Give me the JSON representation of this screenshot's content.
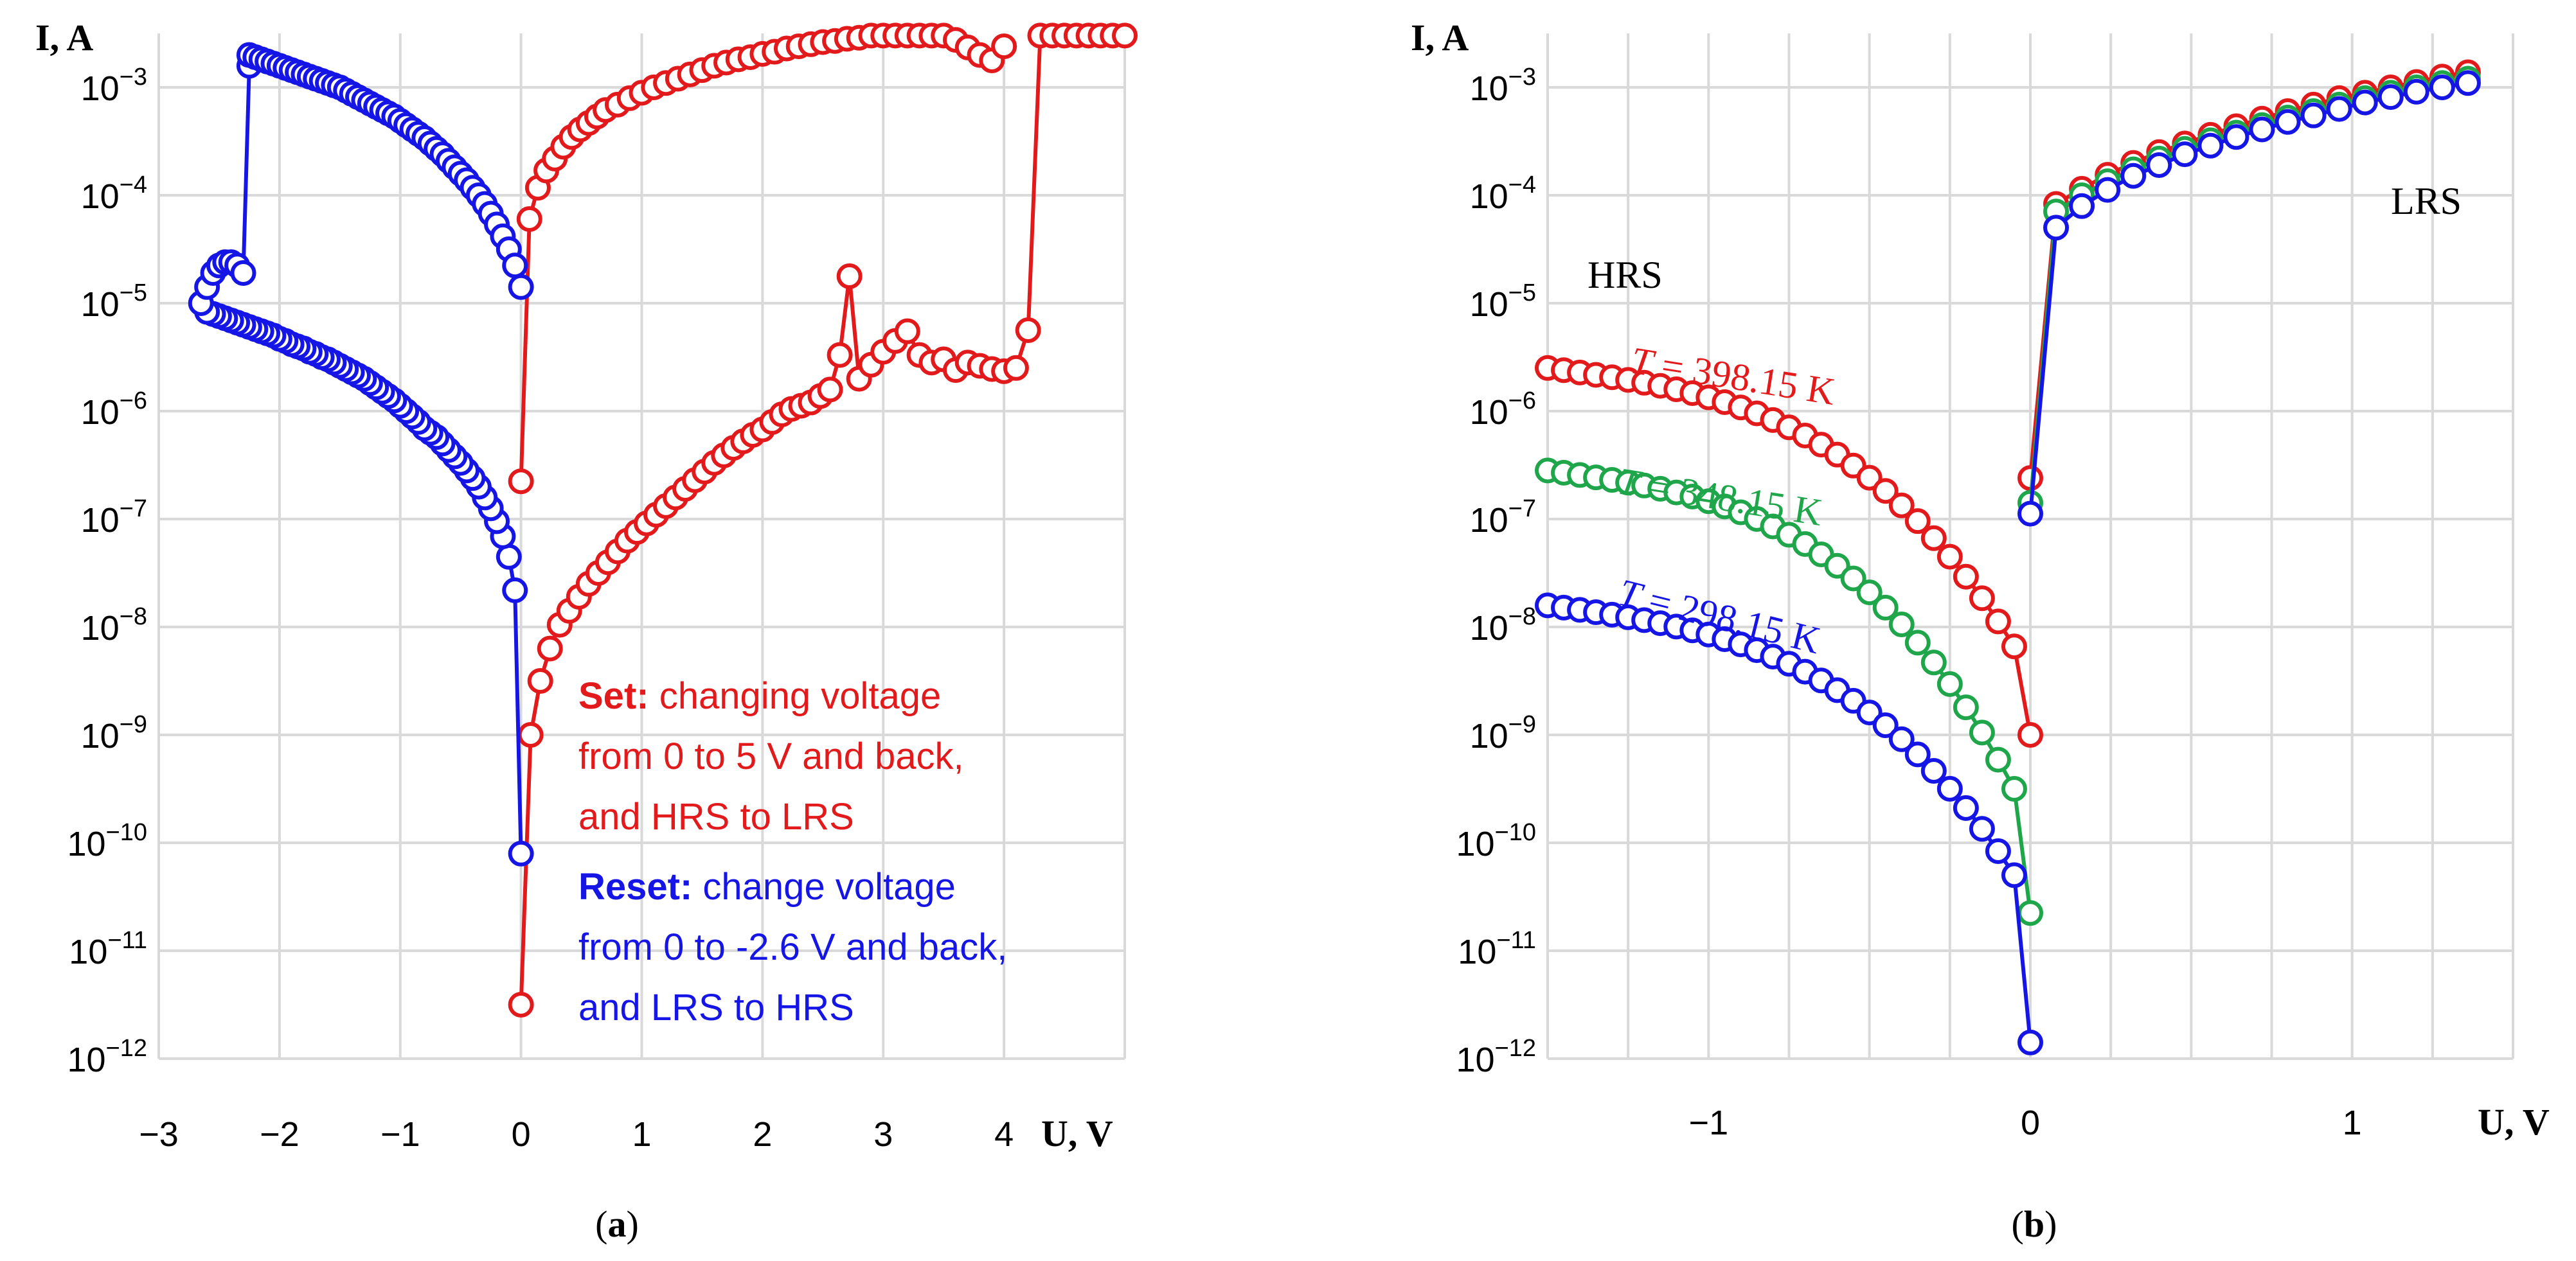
{
  "chart_data": [
    {
      "type": "scatter",
      "panel": "a",
      "caption_open": "(",
      "caption_letter": "a",
      "caption_close": ")",
      "xlabel": "U, V",
      "ylabel": "I, A",
      "xlim": [
        -3,
        5
      ],
      "ylim_exp": [
        -12,
        -2.5
      ],
      "xticks": [
        -3,
        -2,
        -1,
        0,
        1,
        2,
        3,
        4
      ],
      "xtick_labels": [
        "−3",
        "−2",
        "−1",
        "0",
        "1",
        "2",
        "3",
        "4"
      ],
      "ytick_exps": [
        -12,
        -11,
        -10,
        -9,
        -8,
        -7,
        -6,
        -5,
        -4,
        -3
      ],
      "ytick_base": "10",
      "ytick_sup": [
        "−12",
        "−11",
        "−10",
        "−9",
        "−8",
        "−7",
        "−6",
        "−5",
        "−4",
        "−3"
      ],
      "annotation": {
        "set_bold": "Set:",
        "set_line1": " changing voltage",
        "set_line2": "from 0 to 5 V and back,",
        "set_line3": "and HRS to LRS",
        "reset_bold": "Reset:",
        "reset_line1": " change voltage",
        "reset_line2": "from 0 to -2.6 V and back,",
        "reset_line3": "and LRS to HRS"
      },
      "series": [
        {
          "name": "Set",
          "color": "#e31a1c",
          "segments": [
            {
              "x": [
                0.0,
                0.07,
                0.14,
                0.21,
                0.28,
                0.35,
                0.42,
                0.49,
                0.56,
                0.63,
                0.7,
                0.8,
                0.9,
                1.0,
                1.1,
                1.2,
                1.3,
                1.4,
                1.5,
                1.6,
                1.7,
                1.8,
                1.9,
                2.0,
                2.1,
                2.2,
                2.3,
                2.4,
                2.5,
                2.6,
                2.7,
                2.8,
                2.9,
                3.0,
                3.1,
                3.2,
                3.3,
                3.4,
                3.5,
                3.6,
                3.7,
                3.8,
                3.9,
                4.0
              ],
              "logy": [
                -6.65,
                -4.22,
                -3.93,
                -3.77,
                -3.66,
                -3.55,
                -3.46,
                -3.39,
                -3.33,
                -3.27,
                -3.21,
                -3.16,
                -3.1,
                -3.05,
                -3.0,
                -2.96,
                -2.92,
                -2.88,
                -2.84,
                -2.8,
                -2.77,
                -2.74,
                -2.72,
                -2.69,
                -2.67,
                -2.64,
                -2.62,
                -2.6,
                -2.58,
                -2.57,
                -2.55,
                -2.54,
                -2.52,
                -2.52,
                -2.52,
                -2.52,
                -2.52,
                -2.52,
                -2.52,
                -2.56,
                -2.63,
                -2.7,
                -2.75,
                -2.62
              ]
            },
            {
              "x": [
                0.0,
                0.08,
                0.16,
                0.24,
                0.32,
                0.4,
                0.48,
                0.56,
                0.64,
                0.72,
                0.8,
                0.88,
                0.96,
                1.04,
                1.12,
                1.2,
                1.28,
                1.36,
                1.44,
                1.52,
                1.6,
                1.68,
                1.76,
                1.84,
                1.92,
                2.0,
                2.08,
                2.16,
                2.24,
                2.32,
                2.4,
                2.48,
                2.56,
                2.64,
                2.72,
                2.8,
                2.9,
                3.0,
                3.1,
                3.2,
                3.3,
                3.4,
                3.5,
                3.6,
                3.7,
                3.8,
                3.9,
                4.0,
                4.1,
                4.2,
                4.3,
                4.4,
                4.5,
                4.6,
                4.7,
                4.8,
                4.9,
                5.0
              ],
              "logy": [
                -11.5,
                -9.0,
                -8.5,
                -8.2,
                -7.98,
                -7.85,
                -7.72,
                -7.6,
                -7.5,
                -7.4,
                -7.3,
                -7.2,
                -7.12,
                -7.04,
                -6.96,
                -6.88,
                -6.8,
                -6.72,
                -6.64,
                -6.56,
                -6.48,
                -6.41,
                -6.34,
                -6.28,
                -6.22,
                -6.17,
                -6.1,
                -6.03,
                -5.98,
                -5.95,
                -5.92,
                -5.86,
                -5.8,
                -5.48,
                -4.75,
                -5.7,
                -5.57,
                -5.45,
                -5.35,
                -5.26,
                -5.48,
                -5.55,
                -5.52,
                -5.62,
                -5.55,
                -5.58,
                -5.61,
                -5.63,
                -5.6,
                -5.25,
                -2.52,
                -2.52,
                -2.52,
                -2.52,
                -2.52,
                -2.52,
                -2.52,
                -2.52
              ]
            }
          ]
        },
        {
          "name": "Reset",
          "color": "#1515e6",
          "segments": [
            {
              "x": [
                0.0,
                -0.05,
                -0.1,
                -0.15,
                -0.2,
                -0.25,
                -0.3,
                -0.35,
                -0.4,
                -0.45,
                -0.5,
                -0.55,
                -0.6,
                -0.65,
                -0.7,
                -0.75,
                -0.8,
                -0.85,
                -0.9,
                -0.95,
                -1.0,
                -1.05,
                -1.1,
                -1.15,
                -1.2,
                -1.25,
                -1.3,
                -1.35,
                -1.4,
                -1.45,
                -1.5,
                -1.55,
                -1.6,
                -1.65,
                -1.7,
                -1.75,
                -1.8,
                -1.85,
                -1.9,
                -1.95,
                -2.0,
                -2.05,
                -2.1,
                -2.15,
                -2.2,
                -2.25,
                -2.3,
                -2.35,
                -2.4,
                -2.45,
                -2.5,
                -2.55,
                -2.6,
                -2.65,
                -2.6,
                -2.55,
                -2.5,
                -2.45,
                -2.4,
                -2.35,
                -2.3,
                -2.25,
                -2.25
              ],
              "logy": [
                -10.1,
                -7.66,
                -7.35,
                -7.16,
                -7.02,
                -6.9,
                -6.8,
                -6.7,
                -6.62,
                -6.55,
                -6.48,
                -6.42,
                -6.36,
                -6.3,
                -6.24,
                -6.2,
                -6.16,
                -6.1,
                -6.05,
                -6.0,
                -5.95,
                -5.9,
                -5.86,
                -5.82,
                -5.78,
                -5.74,
                -5.7,
                -5.67,
                -5.64,
                -5.61,
                -5.58,
                -5.55,
                -5.52,
                -5.5,
                -5.47,
                -5.45,
                -5.42,
                -5.4,
                -5.38,
                -5.35,
                -5.33,
                -5.3,
                -5.28,
                -5.26,
                -5.24,
                -5.22,
                -5.2,
                -5.18,
                -5.16,
                -5.14,
                -5.12,
                -5.1,
                -5.08,
                -5.0,
                -4.85,
                -4.72,
                -4.65,
                -4.62,
                -4.62,
                -4.65,
                -4.72,
                -2.8,
                -2.7
              ]
            },
            {
              "x": [
                -2.2,
                -2.15,
                -2.1,
                -2.05,
                -2.0,
                -1.95,
                -1.9,
                -1.85,
                -1.8,
                -1.75,
                -1.7,
                -1.65,
                -1.6,
                -1.55,
                -1.5,
                -1.45,
                -1.4,
                -1.35,
                -1.3,
                -1.25,
                -1.2,
                -1.15,
                -1.1,
                -1.05,
                -1.0,
                -0.95,
                -0.9,
                -0.85,
                -0.8,
                -0.75,
                -0.7,
                -0.65,
                -0.6,
                -0.55,
                -0.5,
                -0.45,
                -0.4,
                -0.35,
                -0.3,
                -0.25,
                -0.2,
                -0.15,
                -0.1,
                -0.05,
                0.0
              ],
              "logy": [
                -2.72,
                -2.74,
                -2.76,
                -2.78,
                -2.8,
                -2.82,
                -2.84,
                -2.86,
                -2.88,
                -2.9,
                -2.92,
                -2.94,
                -2.96,
                -2.98,
                -3.0,
                -3.03,
                -3.06,
                -3.09,
                -3.12,
                -3.15,
                -3.18,
                -3.21,
                -3.24,
                -3.27,
                -3.31,
                -3.35,
                -3.39,
                -3.43,
                -3.47,
                -3.52,
                -3.57,
                -3.62,
                -3.68,
                -3.74,
                -3.8,
                -3.86,
                -3.93,
                -4.0,
                -4.08,
                -4.17,
                -4.27,
                -4.38,
                -4.5,
                -4.65,
                -4.85
              ]
            }
          ]
        }
      ]
    },
    {
      "type": "scatter",
      "panel": "b",
      "caption_open": "(",
      "caption_letter": "b",
      "caption_close": ")",
      "xlabel": "U, V",
      "ylabel": "I, A",
      "xlim": [
        -1.5,
        1.5
      ],
      "ylim_exp": [
        -12,
        -2.5
      ],
      "xticks": [
        -1,
        0,
        1
      ],
      "xtick_labels": [
        "−1",
        "0",
        "1"
      ],
      "xgrid": [
        -1.5,
        -1.25,
        -1,
        -0.75,
        -0.5,
        -0.25,
        0,
        0.25,
        0.5,
        0.75,
        1,
        1.25,
        1.5
      ],
      "ytick_exps": [
        -12,
        -11,
        -10,
        -9,
        -8,
        -7,
        -6,
        -5,
        -4,
        -3
      ],
      "ytick_base": "10",
      "ytick_sup": [
        "−12",
        "−11",
        "−10",
        "−9",
        "−8",
        "−7",
        "−6",
        "−5",
        "−4",
        "−3"
      ],
      "hrs_label": "HRS",
      "lrs_label": "LRS",
      "series": [
        {
          "name": "T = 398.15 K",
          "t_symbol": "T",
          "t_rest": " = 398.15 K",
          "color": "#e31a1c",
          "neg_high": -5.6,
          "neg_low": -7.58,
          "zero_logy": -9.0,
          "zero_logy2": -6.62,
          "pos_logy": [
            -4.3,
            -4.08,
            -3.94,
            -3.81,
            -3.7,
            -3.6,
            -3.52,
            -3.44,
            -3.36,
            -3.29,
            -3.22,
            -3.16,
            -3.1,
            -3.05,
            -3.0,
            -2.95,
            -2.9,
            -2.86
          ]
        },
        {
          "name": "T = 348.15 K",
          "t_symbol": "T",
          "t_rest": " = 348.15 K",
          "color": "#1fa64a",
          "neg_high": -6.55,
          "neg_low": -8.9,
          "zero_logy": -10.65,
          "zero_logy2": -6.85,
          "pos_logy": [
            -4.45,
            -4.15,
            -4.0,
            -3.87,
            -3.76,
            -3.66,
            -3.57,
            -3.49,
            -3.42,
            -3.35,
            -3.28,
            -3.22,
            -3.16,
            -3.1,
            -3.05,
            -3.0,
            -2.96,
            -2.92
          ]
        },
        {
          "name": "T = 298.15 K",
          "t_symbol": "T",
          "t_rest": " = 298.15 K",
          "color": "#1515e6",
          "neg_high": -7.8,
          "neg_low": -9.7,
          "zero_logy": -11.85,
          "zero_logy2": -6.95,
          "pos_logy": [
            -4.62,
            -4.3,
            -4.1,
            -3.95,
            -3.82,
            -3.72,
            -3.62,
            -3.54,
            -3.46,
            -3.39,
            -3.32,
            -3.26,
            -3.2,
            -3.14,
            -3.09,
            -3.04,
            -3.0,
            -2.96
          ]
        }
      ]
    }
  ]
}
